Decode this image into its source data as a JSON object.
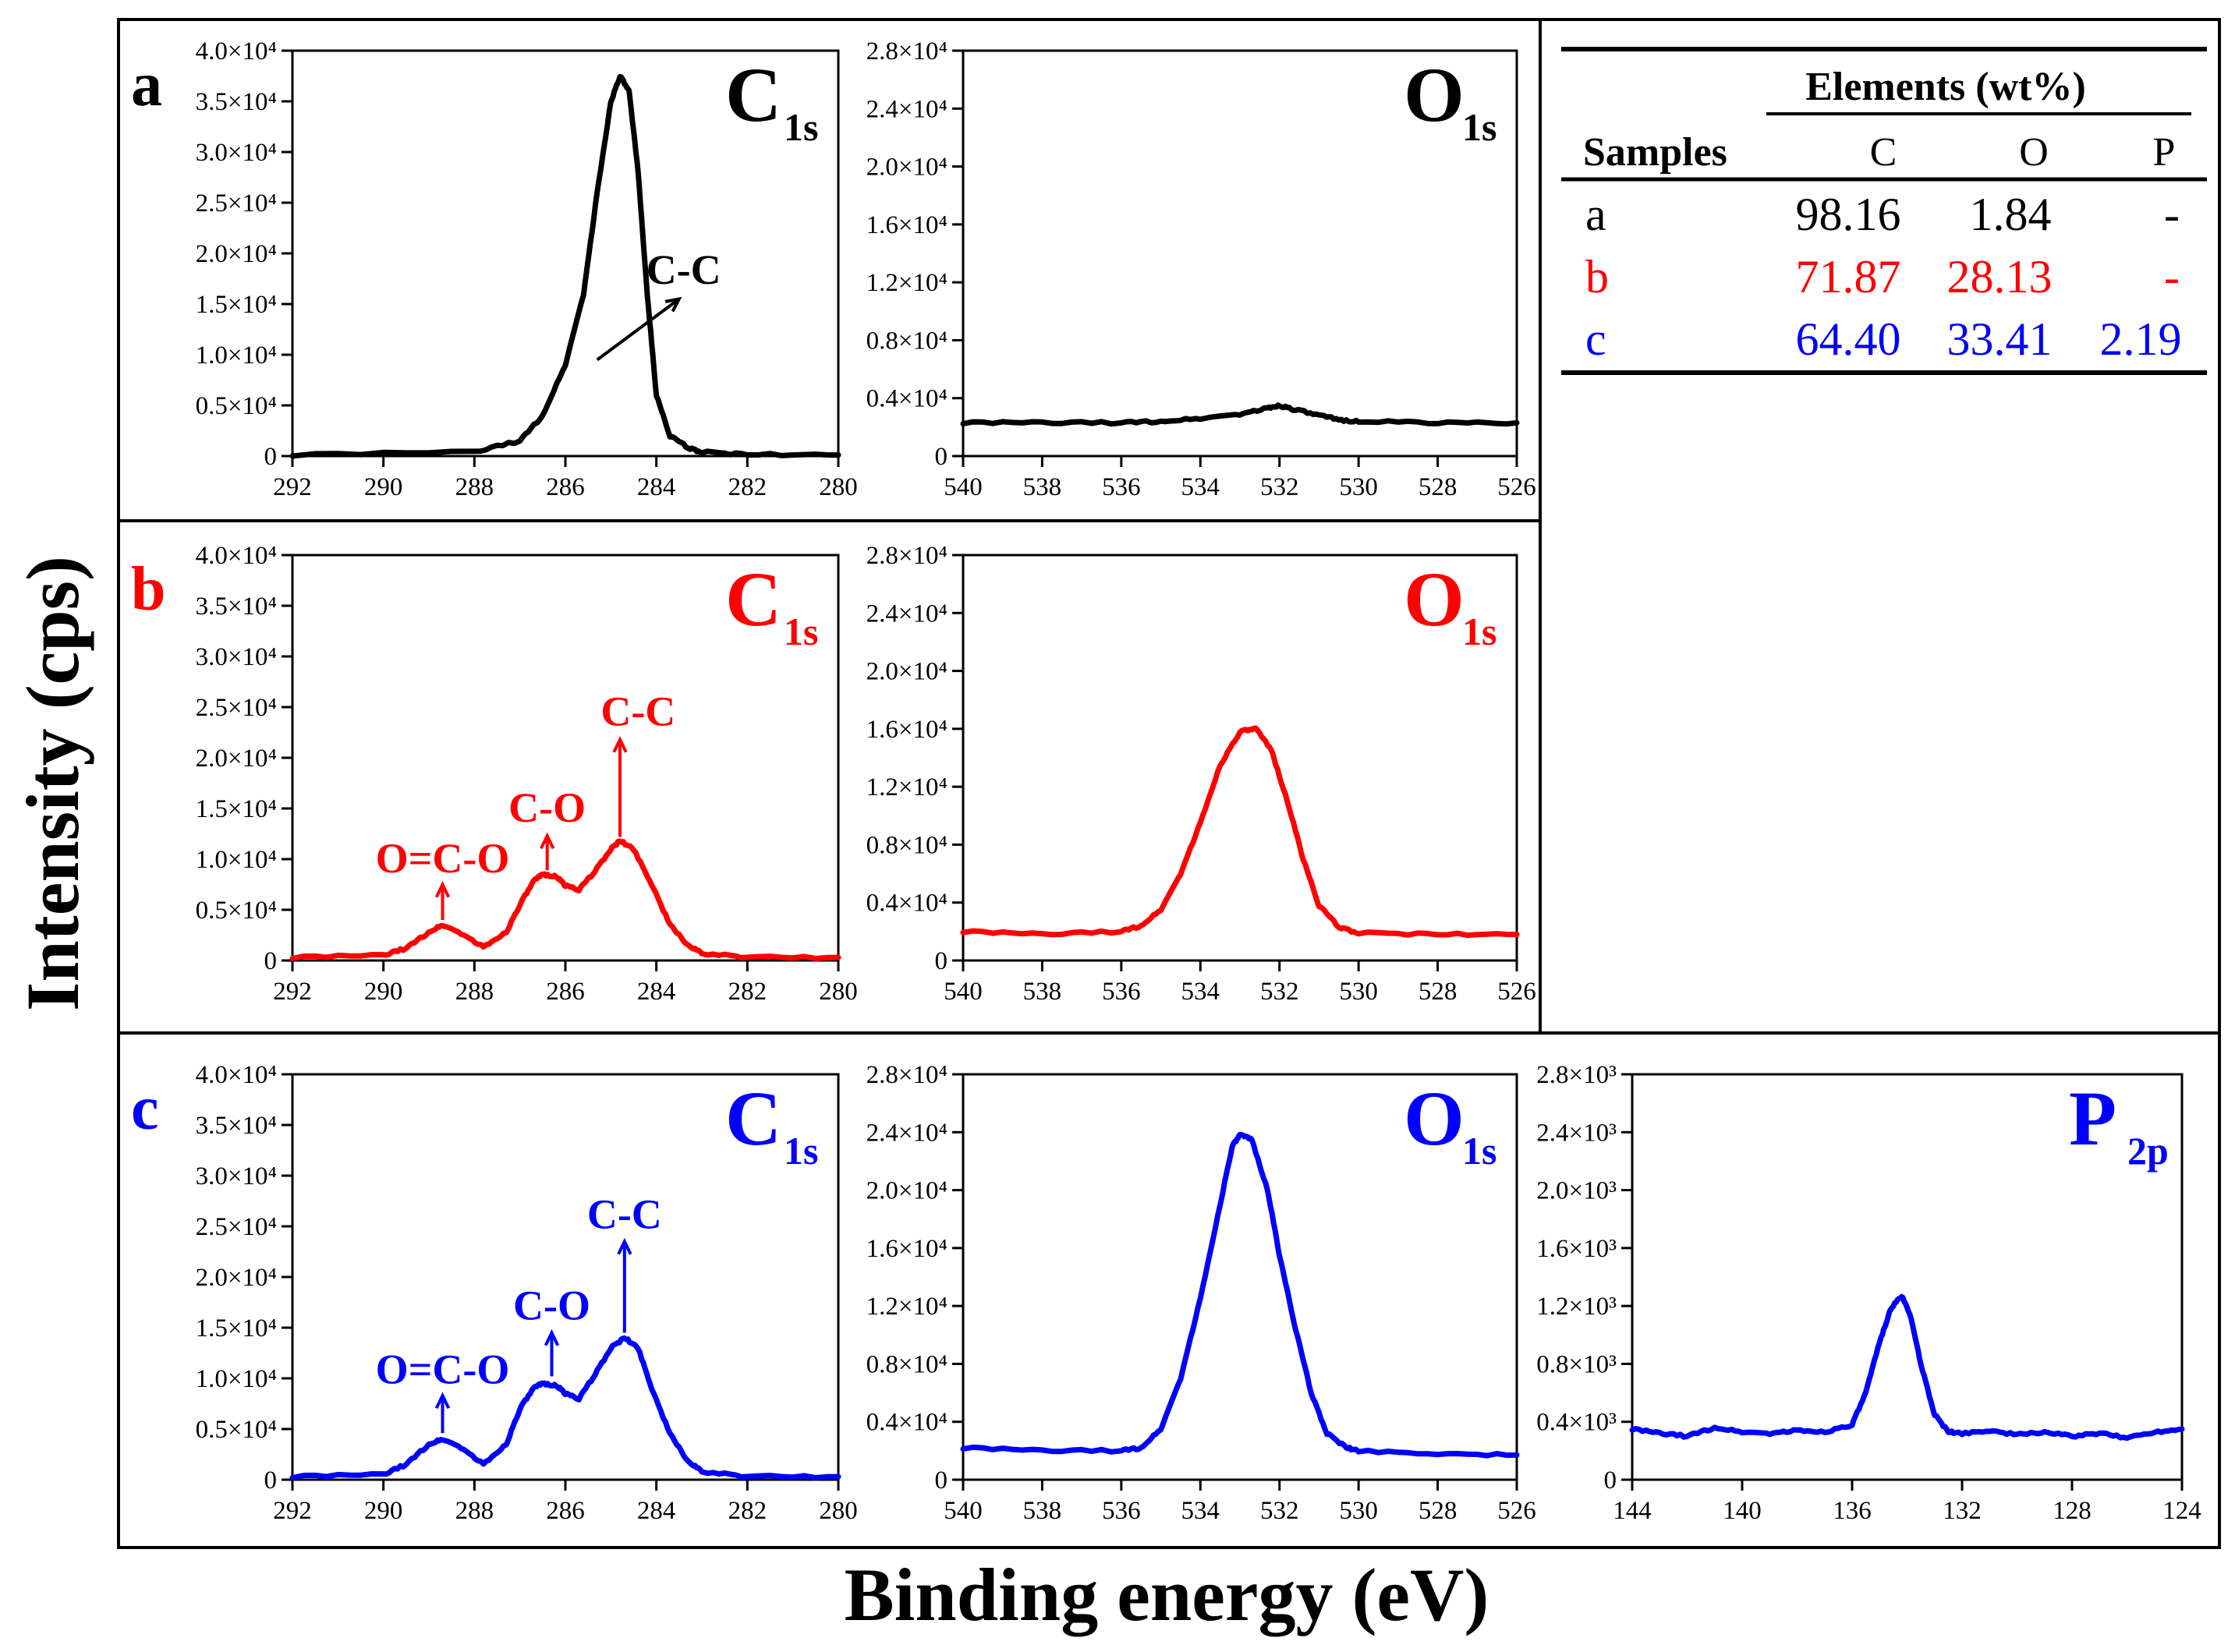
{
  "figure": {
    "ylabel": "Intensity (cps)",
    "xlabel": "Binding energy (eV)"
  },
  "colors": {
    "a": "#000000",
    "b": "#ff0000",
    "c": "#0000ff"
  },
  "table": {
    "group_header": "Elements (wt%)",
    "samples_header": "Samples",
    "columns": [
      "C",
      "O",
      "P"
    ],
    "rows": [
      {
        "sample": "a",
        "C": "98.16",
        "O": "1.84",
        "P": "-",
        "color": "#000000"
      },
      {
        "sample": "b",
        "C": "71.87",
        "O": "28.13",
        "P": "-",
        "color": "#ff0000"
      },
      {
        "sample": "c",
        "C": "64.40",
        "O": "33.41",
        "P": "2.19",
        "color": "#0000ff"
      }
    ]
  },
  "chart_data": [
    {
      "id": "a-C1s",
      "type": "line",
      "sample": "a",
      "letter": "a",
      "title": "C",
      "subscript": "1s",
      "xlim": [
        292,
        280
      ],
      "xticks": [
        292,
        290,
        288,
        286,
        284,
        282,
        280
      ],
      "ylim": [
        0,
        40000
      ],
      "ytick_labels": [
        "0",
        "0.5×10⁴",
        "1.0×10⁴",
        "1.5×10⁴",
        "2.0×10⁴",
        "2.5×10⁴",
        "3.0×10⁴",
        "3.5×10⁴",
        "4.0×10⁴"
      ],
      "series": [
        {
          "name": "a",
          "color": "#000000",
          "x": [
            292,
            288,
            287,
            286.5,
            286,
            285.6,
            285.3,
            285,
            284.8,
            284.6,
            284.4,
            284.2,
            284,
            283.7,
            283.3,
            283,
            282,
            280
          ],
          "y": [
            100,
            400,
            1500,
            4000,
            9000,
            16000,
            26000,
            35000,
            37500,
            36000,
            28000,
            16000,
            6000,
            2000,
            800,
            400,
            150,
            100
          ]
        }
      ],
      "annotations": [
        {
          "text": "C-C",
          "arrow_from": [
            285.3,
            9500
          ],
          "arrow_to": [
            283.5,
            15500
          ],
          "text_at": [
            283.4,
            17000
          ]
        }
      ]
    },
    {
      "id": "a-O1s",
      "type": "line",
      "sample": "a",
      "title": "O",
      "subscript": "1s",
      "xlim": [
        540,
        526
      ],
      "xticks": [
        540,
        538,
        536,
        534,
        532,
        530,
        528,
        526
      ],
      "ylim": [
        0,
        28000
      ],
      "ytick_labels": [
        "0",
        "0.4×10⁴",
        "0.8×10⁴",
        "1.2×10⁴",
        "1.6×10⁴",
        "2.0×10⁴",
        "2.4×10⁴",
        "2.8×10⁴"
      ],
      "series": [
        {
          "name": "a",
          "color": "#000000",
          "x": [
            540,
            538,
            536,
            535,
            534,
            533,
            532.3,
            532,
            531.6,
            531,
            530.5,
            530,
            528,
            526
          ],
          "y": [
            2300,
            2300,
            2300,
            2400,
            2600,
            2900,
            3300,
            3500,
            3200,
            2800,
            2500,
            2400,
            2300,
            2300
          ]
        }
      ],
      "annotations": []
    },
    {
      "id": "b-C1s",
      "type": "line",
      "sample": "b",
      "letter": "b",
      "title": "C",
      "subscript": "1s",
      "xlim": [
        292,
        280
      ],
      "xticks": [
        292,
        290,
        288,
        286,
        284,
        282,
        280
      ],
      "ylim": [
        0,
        40000
      ],
      "ytick_labels": [
        "0",
        "0.5×10⁴",
        "1.0×10⁴",
        "1.5×10⁴",
        "2.0×10⁴",
        "2.5×10⁴",
        "3.0×10⁴",
        "3.5×10⁴",
        "4.0×10⁴"
      ],
      "series": [
        {
          "name": "b",
          "color": "#ff0000",
          "x": [
            292,
            290,
            289.5,
            289,
            288.7,
            288.3,
            287.8,
            287.3,
            287,
            286.7,
            286.5,
            286.2,
            286,
            285.7,
            285.4,
            285,
            284.8,
            284.5,
            284.1,
            283.7,
            283.3,
            283,
            282,
            280
          ],
          "y": [
            300,
            500,
            1200,
            2800,
            3500,
            2700,
            1300,
            2800,
            5500,
            7800,
            8500,
            8300,
            7400,
            7000,
            8500,
            11000,
            11800,
            11000,
            7500,
            3500,
            1500,
            700,
            300,
            300
          ]
        }
      ],
      "annotations": [
        {
          "text": "O=C-O",
          "arrow_from": [
            288.7,
            4000
          ],
          "arrow_to": [
            288.7,
            7500
          ],
          "text_at": [
            288.7,
            8700
          ]
        },
        {
          "text": "C-O",
          "arrow_from": [
            286.4,
            8900
          ],
          "arrow_to": [
            286.4,
            12300
          ],
          "text_at": [
            286.4,
            13700
          ]
        },
        {
          "text": "C-C",
          "arrow_from": [
            284.8,
            12200
          ],
          "arrow_to": [
            284.8,
            21800
          ],
          "text_at": [
            284.4,
            23200
          ]
        }
      ]
    },
    {
      "id": "b-O1s",
      "type": "line",
      "sample": "b",
      "title": "O",
      "subscript": "1s",
      "xlim": [
        540,
        526
      ],
      "xticks": [
        540,
        538,
        536,
        534,
        532,
        530,
        528,
        526
      ],
      "ylim": [
        0,
        28000
      ],
      "ytick_labels": [
        "0",
        "0.4×10⁴",
        "0.8×10⁴",
        "1.2×10⁴",
        "1.6×10⁴",
        "2.0×10⁴",
        "2.4×10⁴",
        "2.8×10⁴"
      ],
      "series": [
        {
          "name": "b",
          "color": "#ff0000",
          "x": [
            540,
            538,
            536,
            535.5,
            535,
            534.5,
            534,
            533.5,
            533,
            532.6,
            532.2,
            531.8,
            531.4,
            531,
            530.5,
            530,
            528,
            526
          ],
          "y": [
            2000,
            1800,
            2000,
            2400,
            3500,
            6000,
            9500,
            13500,
            15800,
            16000,
            14500,
            11000,
            7000,
            3800,
            2300,
            1900,
            1800,
            1800
          ]
        }
      ],
      "annotations": []
    },
    {
      "id": "c-C1s",
      "type": "line",
      "sample": "c",
      "letter": "c",
      "title": "C",
      "subscript": "1s",
      "xlim": [
        292,
        280
      ],
      "xticks": [
        292,
        290,
        288,
        286,
        284,
        282,
        280
      ],
      "ylim": [
        0,
        40000
      ],
      "ytick_labels": [
        "0",
        "0.5×10⁴",
        "1.0×10⁴",
        "1.5×10⁴",
        "2.0×10⁴",
        "2.5×10⁴",
        "3.0×10⁴",
        "3.5×10⁴",
        "4.0×10⁴"
      ],
      "series": [
        {
          "name": "c",
          "color": "#0000ff",
          "x": [
            292,
            290,
            289.5,
            289,
            288.7,
            288.3,
            287.8,
            287.3,
            287,
            286.7,
            286.5,
            286.2,
            286,
            285.7,
            285.4,
            285,
            284.7,
            284.4,
            284.1,
            283.7,
            283.3,
            283,
            282,
            280
          ],
          "y": [
            300,
            500,
            1500,
            3500,
            4000,
            3200,
            1500,
            3500,
            7000,
            9000,
            9500,
            9300,
            8500,
            8000,
            10000,
            13000,
            14000,
            13000,
            9000,
            4500,
            1800,
            800,
            300,
            300
          ]
        }
      ],
      "annotations": [
        {
          "text": "O=C-O",
          "arrow_from": [
            288.7,
            4600
          ],
          "arrow_to": [
            288.7,
            8300
          ],
          "text_at": [
            288.7,
            9500
          ]
        },
        {
          "text": "C-O",
          "arrow_from": [
            286.3,
            10200
          ],
          "arrow_to": [
            286.3,
            14500
          ],
          "text_at": [
            286.3,
            15800
          ]
        },
        {
          "text": "C-C",
          "arrow_from": [
            284.7,
            14500
          ],
          "arrow_to": [
            284.7,
            23500
          ],
          "text_at": [
            284.7,
            24800
          ]
        }
      ]
    },
    {
      "id": "c-O1s",
      "type": "line",
      "sample": "c",
      "title": "O",
      "subscript": "1s",
      "xlim": [
        540,
        526
      ],
      "xticks": [
        540,
        538,
        536,
        534,
        532,
        530,
        528,
        526
      ],
      "ylim": [
        0,
        28000
      ],
      "ytick_labels": [
        "0",
        "0.4×10⁴",
        "0.8×10⁴",
        "1.2×10⁴",
        "1.6×10⁴",
        "2.0×10⁴",
        "2.4×10⁴",
        "2.8×10⁴"
      ],
      "series": [
        {
          "name": "c",
          "color": "#0000ff",
          "x": [
            540,
            538,
            536,
            535.5,
            535,
            534.5,
            534,
            533.5,
            533.2,
            533,
            532.7,
            532.3,
            532,
            531.6,
            531.2,
            530.8,
            530.3,
            530,
            528,
            526
          ],
          "y": [
            2200,
            2000,
            2000,
            2200,
            3500,
            7000,
            12500,
            19000,
            23000,
            23800,
            23500,
            20000,
            15500,
            10500,
            6000,
            3200,
            2200,
            2000,
            1800,
            1700
          ]
        }
      ],
      "annotations": []
    },
    {
      "id": "c-P2p",
      "type": "line",
      "sample": "c",
      "title": "P",
      "subscript": "2p",
      "xlim": [
        144,
        124
      ],
      "xticks": [
        144,
        140,
        136,
        132,
        128,
        124
      ],
      "ylim": [
        0,
        2800
      ],
      "ytick_labels": [
        "0",
        "0.4×10³",
        "0.8×10³",
        "1.2×10³",
        "1.6×10³",
        "2.0×10³",
        "2.4×10³",
        "2.8×10³"
      ],
      "series": [
        {
          "name": "c",
          "color": "#0000ff",
          "x": [
            144,
            143,
            142,
            141,
            140,
            139,
            138,
            137,
            136,
            135.5,
            135,
            134.6,
            134.2,
            133.9,
            133.5,
            133,
            132.5,
            132,
            131,
            130,
            129,
            128,
            127,
            126,
            125,
            124
          ],
          "y": [
            350,
            320,
            300,
            360,
            330,
            320,
            340,
            330,
            380,
            600,
            950,
            1180,
            1270,
            1150,
            800,
            450,
            330,
            320,
            340,
            310,
            330,
            300,
            320,
            290,
            330,
            350
          ]
        }
      ],
      "annotations": []
    }
  ]
}
